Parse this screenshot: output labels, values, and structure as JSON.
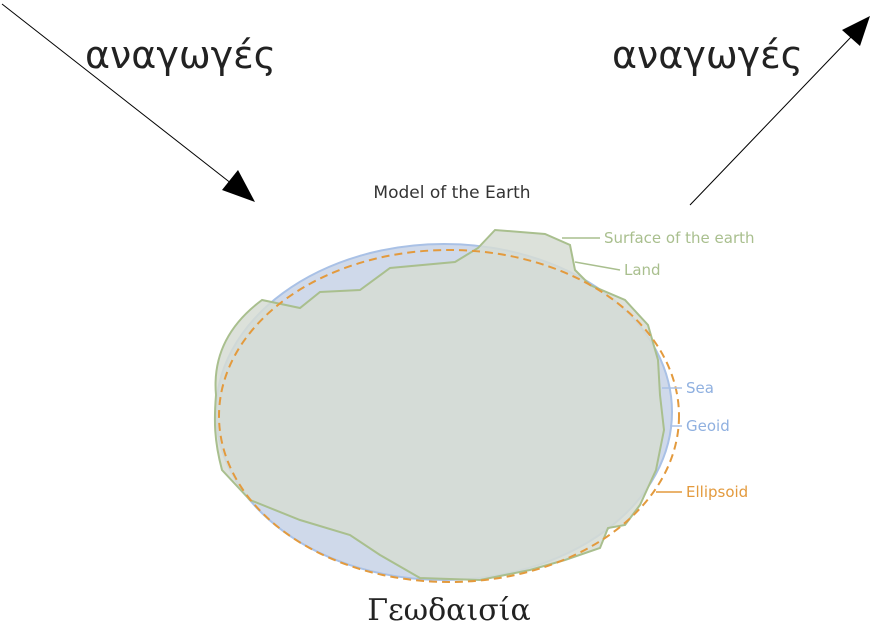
{
  "header": {
    "left": "αναγωγές",
    "right": "αναγωγές"
  },
  "diagram": {
    "title": "Model of the Earth",
    "labels": [
      "Surface of the earth",
      "Land",
      "Sea",
      "Geoid",
      "Ellipsoid"
    ]
  },
  "caption": "Γεωδαισία"
}
